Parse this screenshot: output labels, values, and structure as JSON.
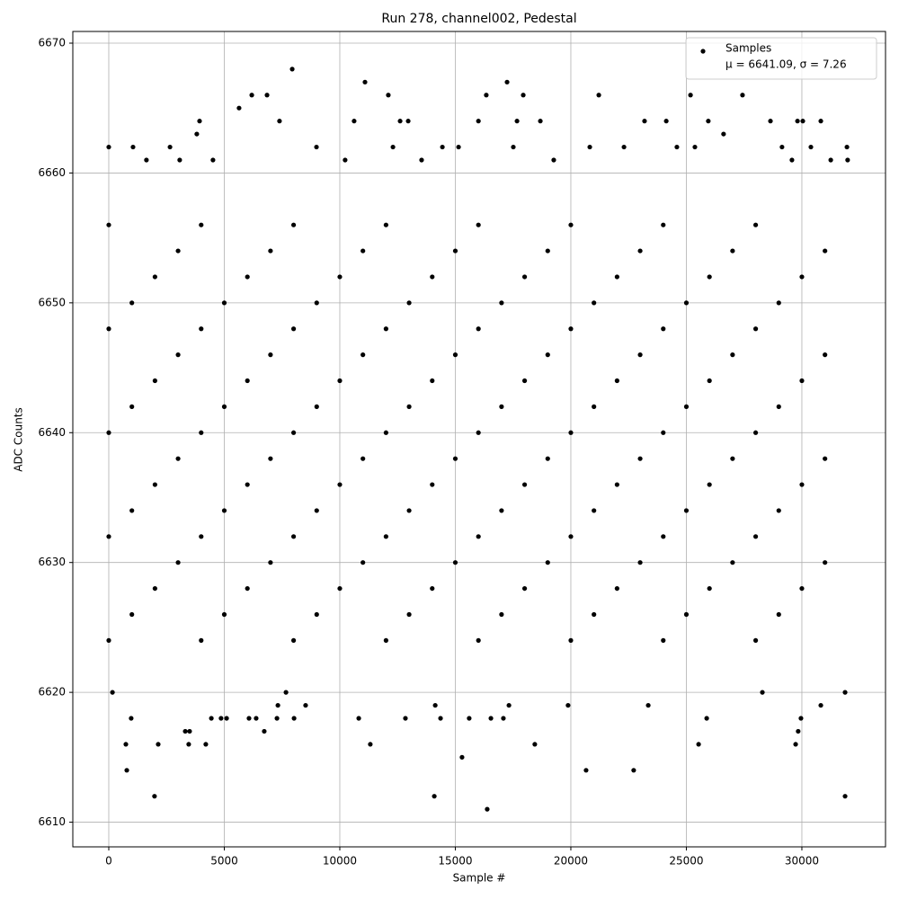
{
  "chart_data": {
    "type": "scatter",
    "title": "Run 278, channel002, Pedestal",
    "x_label": "Sample #",
    "y_label": "ADC Counts",
    "legend_note": "μ = 6641.09, σ = 7.26",
    "legend_position": "upper right",
    "grid": true,
    "xlim": [
      -1556,
      33620
    ],
    "ylim": [
      6608.1,
      6670.9
    ],
    "xticks": [
      0,
      5000,
      10000,
      15000,
      20000,
      25000,
      30000
    ],
    "yticks": [
      6610,
      6620,
      6630,
      6640,
      6650,
      6660,
      6670
    ],
    "series": [
      {
        "name": "Samples",
        "color": "#000000",
        "x": [
          7940,
          11090,
          17240,
          6850,
          6190,
          12100,
          21210,
          25180,
          27430,
          16340,
          17940,
          5640,
          3930,
          7390,
          10620,
          12610,
          12960,
          16000,
          17670,
          18680,
          23190,
          24130,
          25950,
          28640,
          29810,
          30040,
          30820,
          3810,
          26610,
          0,
          1050,
          2650,
          8990,
          12300,
          14440,
          15140,
          17510,
          20820,
          22300,
          24590,
          25370,
          29140,
          30390,
          31950,
          1630,
          3070,
          4510,
          10230,
          13540,
          19260,
          29570,
          31250,
          31980,
          160,
          740,
          780,
          970,
          1980,
          2140,
          3310,
          3500,
          3460,
          4200,
          4440,
          4860,
          5100,
          6070,
          6380,
          6730,
          7320,
          7280,
          7670,
          8020,
          8520,
          10820,
          11320,
          12840,
          14090,
          14130,
          14360,
          15290,
          15600,
          16380,
          16540,
          17080,
          17320,
          18440,
          19880,
          20660,
          22720,
          23350,
          25530,
          25880,
          28290,
          29730,
          29840,
          29960,
          30820,
          31870,
          31870,
          0,
          4000,
          8000,
          12000,
          16000,
          20000,
          24000,
          28000,
          1000,
          5000,
          9000,
          13000,
          17000,
          21000,
          25000,
          29000,
          2000,
          6000,
          10000,
          14000,
          18000,
          22000,
          26000,
          30000,
          3000,
          7000,
          11000,
          15000,
          19000,
          23000,
          27000,
          31000,
          0,
          4000,
          8000,
          12000,
          16000,
          20000,
          24000,
          28000,
          1000,
          5000,
          9000,
          13000,
          17000,
          21000,
          25000,
          29000,
          2000,
          6000,
          10000,
          14000,
          18000,
          22000,
          26000,
          30000,
          3000,
          7000,
          11000,
          15000,
          19000,
          23000,
          27000,
          31000,
          0,
          4000,
          8000,
          12000,
          16000,
          20000,
          24000,
          28000,
          1000,
          5000,
          9000,
          13000,
          17000,
          21000,
          25000,
          29000,
          2000,
          6000,
          10000,
          14000,
          18000,
          22000,
          26000,
          30000,
          3000,
          7000,
          11000,
          15000,
          19000,
          23000,
          27000,
          31000,
          0,
          4000,
          8000,
          12000,
          16000,
          20000,
          24000,
          28000,
          1000,
          5000,
          9000,
          13000,
          17000,
          21000,
          25000,
          29000,
          2000,
          6000,
          10000,
          14000,
          18000,
          22000,
          26000,
          30000,
          3000,
          7000,
          11000,
          15000,
          19000,
          23000,
          27000,
          31000,
          0,
          4000,
          8000,
          12000,
          16000,
          20000,
          24000,
          28000
        ],
        "values": [
          6668,
          6667,
          6667,
          6666,
          6666,
          6666,
          6666,
          6666,
          6666,
          6666,
          6666,
          6665,
          6664,
          6664,
          6664,
          6664,
          6664,
          6664,
          6664,
          6664,
          6664,
          6664,
          6664,
          6664,
          6664,
          6664,
          6664,
          6663,
          6663,
          6662,
          6662,
          6662,
          6662,
          6662,
          6662,
          6662,
          6662,
          6662,
          6662,
          6662,
          6662,
          6662,
          6662,
          6662,
          6661,
          6661,
          6661,
          6661,
          6661,
          6661,
          6661,
          6661,
          6661,
          6620,
          6616,
          6614,
          6618,
          6612,
          6616,
          6617,
          6617,
          6616,
          6616,
          6618,
          6618,
          6618,
          6618,
          6618,
          6617,
          6619,
          6618,
          6620,
          6618,
          6619,
          6618,
          6616,
          6618,
          6612,
          6619,
          6618,
          6615,
          6618,
          6611,
          6618,
          6618,
          6619,
          6616,
          6619,
          6614,
          6614,
          6619,
          6616,
          6618,
          6620,
          6616,
          6617,
          6618,
          6619,
          6612,
          6620,
          6624,
          6624,
          6624,
          6624,
          6624,
          6624,
          6624,
          6624,
          6626,
          6626,
          6626,
          6626,
          6626,
          6626,
          6626,
          6626,
          6628,
          6628,
          6628,
          6628,
          6628,
          6628,
          6628,
          6628,
          6630,
          6630,
          6630,
          6630,
          6630,
          6630,
          6630,
          6630,
          6632,
          6632,
          6632,
          6632,
          6632,
          6632,
          6632,
          6632,
          6634,
          6634,
          6634,
          6634,
          6634,
          6634,
          6634,
          6634,
          6636,
          6636,
          6636,
          6636,
          6636,
          6636,
          6636,
          6636,
          6638,
          6638,
          6638,
          6638,
          6638,
          6638,
          6638,
          6638,
          6640,
          6640,
          6640,
          6640,
          6640,
          6640,
          6640,
          6640,
          6642,
          6642,
          6642,
          6642,
          6642,
          6642,
          6642,
          6642,
          6644,
          6644,
          6644,
          6644,
          6644,
          6644,
          6644,
          6644,
          6646,
          6646,
          6646,
          6646,
          6646,
          6646,
          6646,
          6646,
          6648,
          6648,
          6648,
          6648,
          6648,
          6648,
          6648,
          6648,
          6650,
          6650,
          6650,
          6650,
          6650,
          6650,
          6650,
          6650,
          6652,
          6652,
          6652,
          6652,
          6652,
          6652,
          6652,
          6652,
          6654,
          6654,
          6654,
          6654,
          6654,
          6654,
          6654,
          6654,
          6656,
          6656,
          6656,
          6656,
          6656,
          6656,
          6656,
          6656
        ]
      }
    ]
  }
}
